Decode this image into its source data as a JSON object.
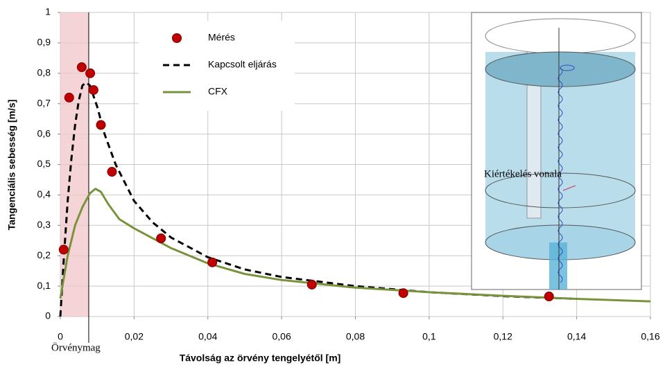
{
  "chart_data": {
    "type": "scatter",
    "xlabel": "Távolság az örvény tengelyétől [m]",
    "ylabel": "Tangenciális sebesség [m/s]",
    "annotation": "Örvénymag",
    "inset_label": "Kiértékelés vonala",
    "highlight_range": [
      0,
      0.0077
    ],
    "highlight_color": "#f2c6c9",
    "xlim": [
      0,
      0.16
    ],
    "ylim": [
      0,
      1
    ],
    "xticks": [
      0,
      {
        "value": 0.02,
        "label": "0,02"
      },
      {
        "value": 0.04,
        "label": "0,04"
      },
      {
        "value": 0.06,
        "label": "0,06"
      },
      {
        "value": 0.08,
        "label": "0,08"
      },
      {
        "value": 0.1,
        "label": "0,1"
      },
      {
        "value": 0.12,
        "label": "0,12"
      },
      {
        "value": 0.14,
        "label": "0,14"
      },
      {
        "value": 0.16,
        "label": "0,16"
      }
    ],
    "yticks": [
      0,
      {
        "value": 0.1,
        "label": "0,1"
      },
      {
        "value": 0.2,
        "label": "0,2"
      },
      {
        "value": 0.3,
        "label": "0,3"
      },
      {
        "value": 0.4,
        "label": "0,4"
      },
      {
        "value": 0.5,
        "label": "0,5"
      },
      {
        "value": 0.6,
        "label": "0,6"
      },
      {
        "value": 0.7,
        "label": "0,7"
      },
      {
        "value": 0.8,
        "label": "0,8"
      },
      {
        "value": 0.9,
        "label": "0,9"
      },
      1
    ],
    "grid": true,
    "series": [
      {
        "name": "Mérés",
        "style": "markers",
        "color": "#c00000",
        "x": [
          0.0009,
          0.0024,
          0.0058,
          0.0081,
          0.009,
          0.011,
          0.014,
          0.0273,
          0.0412,
          0.0682,
          0.093,
          0.1325
        ],
        "y": [
          0.22,
          0.72,
          0.82,
          0.8,
          0.745,
          0.63,
          0.476,
          0.257,
          0.178,
          0.105,
          0.077,
          0.066
        ]
      },
      {
        "name": "Kapcsolt eljárás",
        "style": "dashed",
        "color": "#000000",
        "x": [
          0,
          0.001,
          0.002,
          0.003,
          0.004,
          0.005,
          0.006,
          0.007,
          0.008,
          0.01,
          0.012,
          0.015,
          0.02,
          0.025,
          0.03,
          0.04,
          0.05,
          0.06,
          0.08,
          0.1,
          0.12,
          0.14
        ],
        "y": [
          0,
          0.2,
          0.38,
          0.52,
          0.63,
          0.71,
          0.76,
          0.77,
          0.76,
          0.69,
          0.6,
          0.5,
          0.38,
          0.31,
          0.26,
          0.195,
          0.155,
          0.13,
          0.1,
          0.08,
          0.067,
          0.058
        ]
      },
      {
        "name": "CFX",
        "style": "solid",
        "color": "#77933c",
        "x": [
          0,
          0.002,
          0.004,
          0.006,
          0.008,
          0.0095,
          0.011,
          0.013,
          0.016,
          0.02,
          0.03,
          0.04,
          0.05,
          0.06,
          0.08,
          0.1,
          0.12,
          0.14,
          0.16
        ],
        "y": [
          0.06,
          0.2,
          0.3,
          0.36,
          0.405,
          0.42,
          0.41,
          0.37,
          0.32,
          0.29,
          0.225,
          0.175,
          0.14,
          0.12,
          0.095,
          0.08,
          0.068,
          0.058,
          0.05
        ]
      }
    ]
  }
}
